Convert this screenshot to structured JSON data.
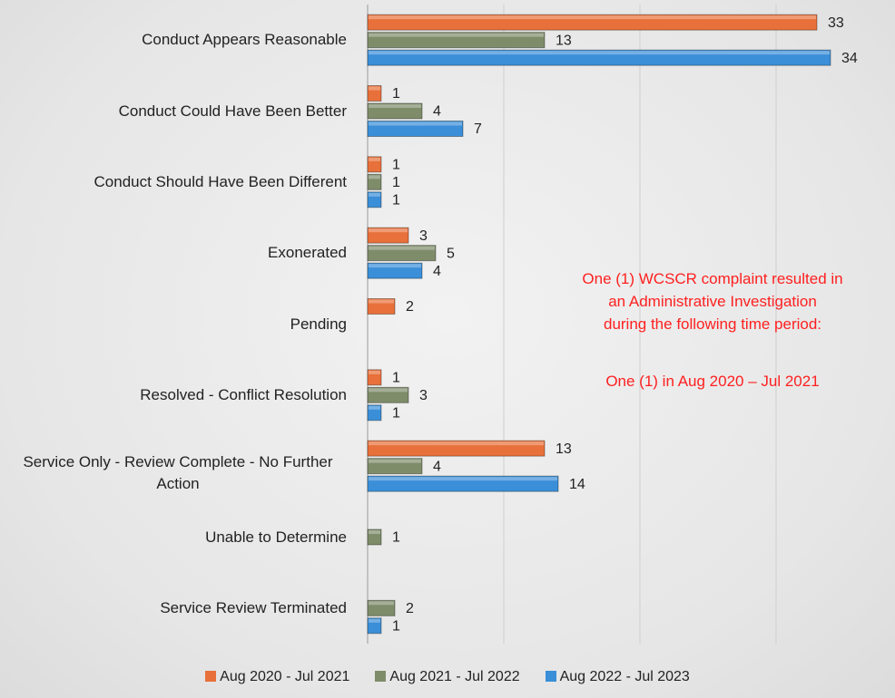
{
  "chart_data": {
    "type": "hbar",
    "categories": [
      "Conduct Appears Reasonable",
      "Conduct Could Have Been Better",
      "Conduct Should Have Been Different",
      "Exonerated",
      "Pending",
      "Resolved - Conflict Resolution",
      "Service Only - Review Complete - No Further Action",
      "Unable to Determine",
      "Service Review Terminated"
    ],
    "series": [
      {
        "name": "Aug 2020 - Jul 2021",
        "color": "#e8703a",
        "values": [
          33,
          1,
          1,
          3,
          2,
          1,
          13,
          null,
          null
        ]
      },
      {
        "name": "Aug 2021 - Jul 2022",
        "color": "#7f8c6a",
        "values": [
          13,
          4,
          1,
          5,
          null,
          3,
          4,
          1,
          2
        ]
      },
      {
        "name": "Aug 2022 - Jul 2023",
        "color": "#3a8fd8",
        "values": [
          34,
          7,
          1,
          4,
          null,
          1,
          14,
          null,
          1
        ]
      }
    ],
    "xlim": [
      0,
      38
    ],
    "xticks": [
      0,
      10,
      20,
      30
    ],
    "xtick_labels": false,
    "grid": true,
    "annotation": [
      "One (1) WCSCR complaint resulted in",
      "an Administrative Investigation",
      "during the following time period:",
      "One (1) in Aug 2020 – Jul 2021"
    ],
    "legend": "bottom"
  }
}
